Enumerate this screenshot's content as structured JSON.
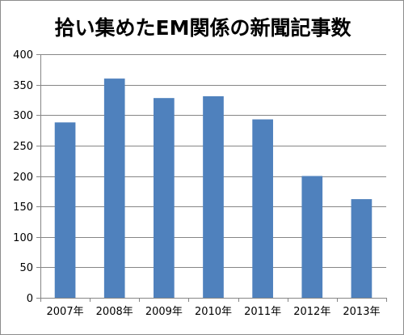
{
  "chart_data": {
    "type": "bar",
    "title": "拾い集めたEM関係の新聞記事数",
    "xlabel": "",
    "ylabel": "",
    "categories": [
      "2007年",
      "2008年",
      "2009年",
      "2010年",
      "2011年",
      "2012年",
      "2013年"
    ],
    "values": [
      288,
      360,
      328,
      331,
      293,
      200,
      162
    ],
    "ylim": [
      0,
      400
    ],
    "yticks": [
      0,
      50,
      100,
      150,
      200,
      250,
      300,
      350,
      400
    ],
    "grid": true,
    "legend": "none",
    "bar_color": "#4f81bd"
  }
}
